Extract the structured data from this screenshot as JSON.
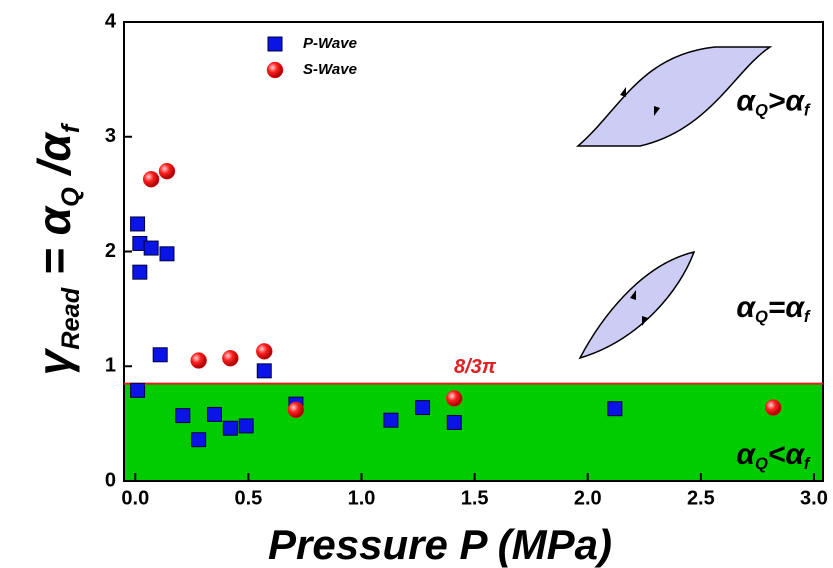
{
  "chart_data": {
    "type": "scatter",
    "xlabel": "Pressure P (MPa)",
    "ylabel_parts": [
      "γ",
      "Read",
      " = α",
      "Q",
      " /α",
      "f"
    ],
    "series": [
      {
        "name": "P-Wave",
        "color": "#0a14e6",
        "marker": "square",
        "x": [
          0.01,
          0.02,
          0.02,
          0.07,
          0.14,
          0.11,
          0.01,
          0.21,
          0.28,
          0.35,
          0.42,
          0.49,
          0.57,
          0.71,
          1.13,
          1.27,
          1.41,
          2.12
        ],
        "values": [
          2.24,
          2.07,
          1.82,
          2.03,
          1.98,
          1.1,
          0.79,
          0.57,
          0.36,
          0.58,
          0.46,
          0.48,
          0.96,
          0.67,
          0.53,
          0.64,
          0.51,
          0.63
        ]
      },
      {
        "name": "S-Wave",
        "color": "#ff1a1a",
        "marker": "circle",
        "x": [
          0.07,
          0.14,
          0.28,
          0.42,
          0.57,
          0.71,
          1.41,
          2.82
        ],
        "values": [
          2.63,
          2.7,
          1.05,
          1.07,
          1.13,
          0.62,
          0.72,
          0.64
        ]
      }
    ],
    "threshold": {
      "value": 0.8488,
      "label": "8/3π",
      "color": "#e02020",
      "fill": "#00cc00"
    },
    "annotations": [
      {
        "parts": [
          "α",
          "Q",
          ">α",
          "f"
        ],
        "x": 2.98,
        "y": 3.3
      },
      {
        "parts": [
          "α",
          "Q",
          "=α",
          "f"
        ],
        "x": 2.98,
        "y": 1.5
      },
      {
        "parts": [
          "α",
          "Q",
          "<α",
          "f"
        ],
        "x": 2.98,
        "y": 0.22
      }
    ],
    "xlim": [
      -0.05,
      3.04
    ],
    "ylim": [
      0,
      4
    ],
    "xticks": [
      {
        "value": 0,
        "label": "0.0"
      },
      {
        "value": 0.5,
        "label": "0.5"
      },
      {
        "value": 1,
        "label": "1.0"
      },
      {
        "value": 1.5,
        "label": "1.5"
      },
      {
        "value": 2,
        "label": "2.0"
      },
      {
        "value": 2.5,
        "label": "2.5"
      },
      {
        "value": 3,
        "label": "3.0"
      }
    ],
    "yticks": [
      0,
      1,
      2,
      3,
      4
    ],
    "legend": "upper left"
  }
}
